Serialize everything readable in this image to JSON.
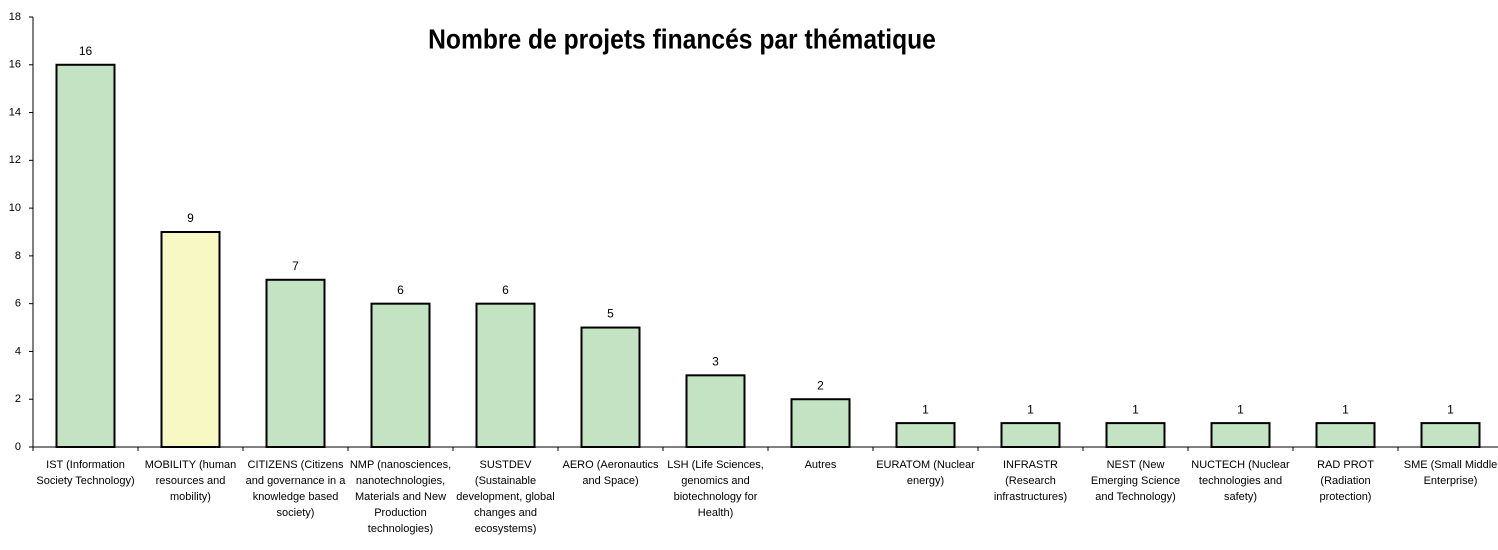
{
  "chart_data": {
    "type": "bar",
    "title": "Nombre de projets financés par thématique",
    "categories": [
      "IST (Information Society Technology)",
      "MOBILITY (human resources and mobility)",
      "CITIZENS (Citizens and governance in a knowledge based society)",
      "NMP (nanosciences, nanotechnologies, Materials and New Production technologies)",
      "SUSTDEV (Sustainable development, global changes and ecosystems)",
      "AERO (Aeronautics and Space)",
      "LSH (Life Sciences, genomics and biotechnology for Health)",
      "Autres",
      "EURATOM (Nuclear energy)",
      "INFRASTR (Research infrastructures)",
      "NEST (New Emerging Science and Technology)",
      "NUCTECH (Nuclear technologies and safety)",
      "RAD PROT (Radiation protection)",
      "SME (Small Middle Enterprise)"
    ],
    "values": [
      16,
      9,
      7,
      6,
      6,
      5,
      3,
      2,
      1,
      1,
      1,
      1,
      1,
      1
    ],
    "colors": [
      "#c3e3c3",
      "#f8f8c4",
      "#c3e3c3",
      "#c3e3c3",
      "#c3e3c3",
      "#c3e3c3",
      "#c3e3c3",
      "#c3e3c3",
      "#c3e3c3",
      "#c3e3c3",
      "#c3e3c3",
      "#c3e3c3",
      "#c3e3c3",
      "#c3e3c3"
    ],
    "ylim": [
      0,
      18
    ],
    "yticks": [
      0,
      2,
      4,
      6,
      8,
      10,
      12,
      14,
      16,
      18
    ],
    "grid": false
  }
}
